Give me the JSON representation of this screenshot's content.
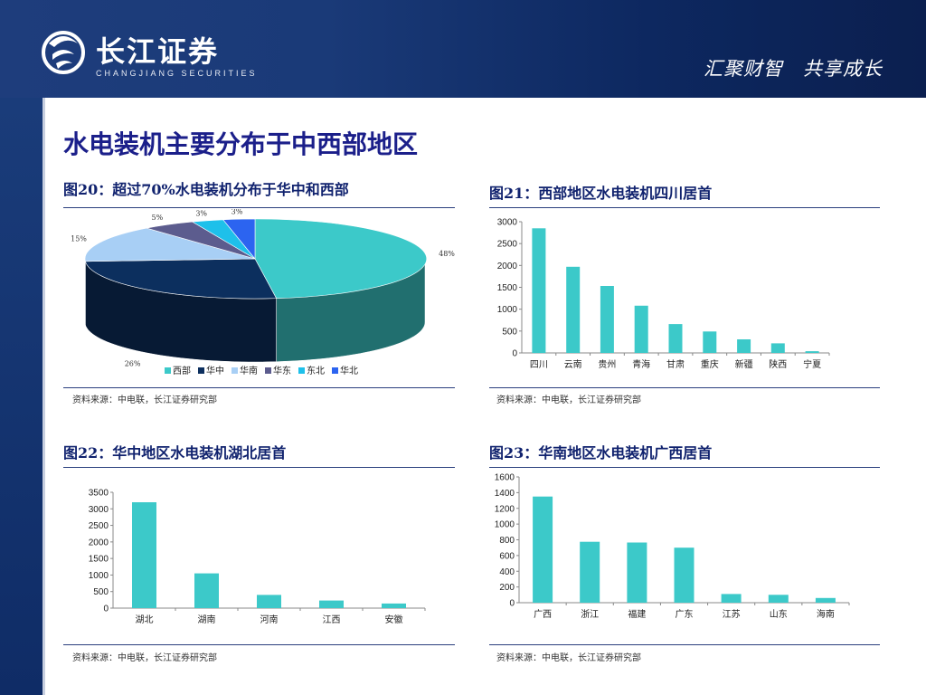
{
  "header": {
    "logo_cn": "长江证券",
    "logo_en": "CHANGJIANG SECURITIES",
    "slogan": "汇聚财智　共享成长"
  },
  "main_title": "水电装机主要分布于中西部地区",
  "panels": [
    {
      "title": "图20：超过70%水电装机分布于华中和西部",
      "source": "资料来源：中电联，长江证券研究部"
    },
    {
      "title": "图21：西部地区水电装机四川居首",
      "source": "资料来源：中电联，长江证券研究部"
    },
    {
      "title": "图22：华中地区水电装机湖北居首",
      "source": "资料来源：中电联，长江证券研究部"
    },
    {
      "title": "图23：华南地区水电装机广西居首",
      "source": "资料来源：中电联，长江证券研究部"
    }
  ],
  "chart_data": [
    {
      "type": "pie",
      "categories": [
        "西部",
        "华中",
        "华南",
        "华东",
        "东北",
        "华北"
      ],
      "values": [
        48,
        26,
        15,
        5,
        3,
        3
      ],
      "labels": [
        "48%",
        "26%",
        "15%",
        "5%",
        "3%",
        "3%"
      ],
      "colors": [
        "#3cc9c9",
        "#0c2f5e",
        "#a8cff5",
        "#5c5c8e",
        "#1ec0ea",
        "#2c64f0"
      ],
      "legend_position": "bottom"
    },
    {
      "type": "bar",
      "categories": [
        "四川",
        "云南",
        "贵州",
        "青海",
        "甘肃",
        "重庆",
        "新疆",
        "陕西",
        "宁夏"
      ],
      "values": [
        2850,
        1970,
        1530,
        1080,
        660,
        490,
        310,
        220,
        40
      ],
      "ylim": [
        0,
        3000
      ],
      "yticks": [
        0,
        500,
        1000,
        1500,
        2000,
        2500,
        3000
      ],
      "color": "#3cc9c9"
    },
    {
      "type": "bar",
      "categories": [
        "湖北",
        "湖南",
        "河南",
        "江西",
        "安徽"
      ],
      "values": [
        3200,
        1050,
        400,
        230,
        140
      ],
      "ylim": [
        0,
        3500
      ],
      "yticks": [
        0,
        500,
        1000,
        1500,
        2000,
        2500,
        3000,
        3500
      ],
      "color": "#3cc9c9"
    },
    {
      "type": "bar",
      "categories": [
        "广西",
        "浙江",
        "福建",
        "广东",
        "江苏",
        "山东",
        "海南"
      ],
      "values": [
        1350,
        775,
        765,
        700,
        110,
        100,
        60
      ],
      "ylim": [
        0,
        1600
      ],
      "yticks": [
        0,
        200,
        400,
        600,
        800,
        1000,
        1200,
        1400,
        1600
      ],
      "color": "#3cc9c9"
    }
  ]
}
